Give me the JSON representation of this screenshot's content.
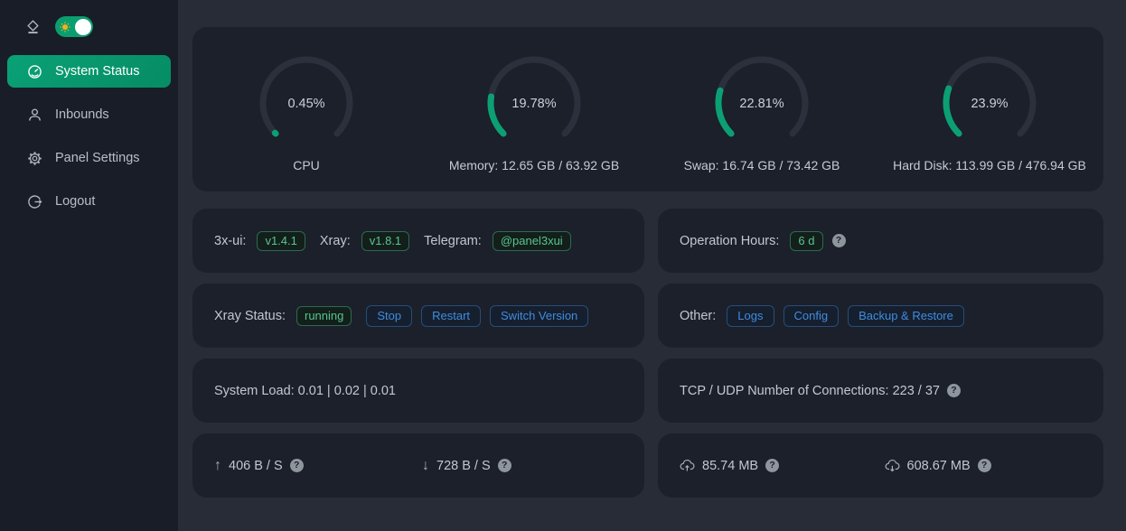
{
  "colors": {
    "accent_green": "#089b6e",
    "gauge_green": "#0c9f74",
    "gauge_track": "#2b303c",
    "tag_green_text": "#57c493",
    "button_blue": "#3f8cdf",
    "sidebar_bg": "#181d28",
    "card_bg": "#1b202b",
    "page_bg": "#272c37"
  },
  "sidebar": {
    "theme_toggle_state": "on",
    "items": [
      {
        "label": "System Status",
        "active": true
      },
      {
        "label": "Inbounds",
        "active": false
      },
      {
        "label": "Panel Settings",
        "active": false
      },
      {
        "label": "Logout",
        "active": false
      }
    ]
  },
  "gauges": [
    {
      "name": "CPU",
      "percent": 0.45,
      "percent_label": "0.45%",
      "label": "CPU"
    },
    {
      "name": "Memory",
      "percent": 19.78,
      "percent_label": "19.78%",
      "label": "Memory: 12.65 GB / 63.92 GB"
    },
    {
      "name": "Swap",
      "percent": 22.81,
      "percent_label": "22.81%",
      "label": "Swap: 16.74 GB / 73.42 GB"
    },
    {
      "name": "Hard Disk",
      "percent": 23.9,
      "percent_label": "23.9%",
      "label": "Hard Disk: 113.99 GB / 476.94 GB"
    }
  ],
  "cards": {
    "versions": {
      "xui_label": "3x-ui:",
      "xui_tag": "v1.4.1",
      "xray_label": "Xray:",
      "xray_tag": "v1.8.1",
      "telegram_label": "Telegram:",
      "telegram_tag": "@panel3xui"
    },
    "operation": {
      "label": "Operation Hours:",
      "tag": "6 d"
    },
    "xray_status": {
      "label": "Xray Status:",
      "tag": "running",
      "buttons": [
        "Stop",
        "Restart",
        "Switch Version"
      ]
    },
    "other": {
      "label": "Other:",
      "buttons": [
        "Logs",
        "Config",
        "Backup & Restore"
      ]
    },
    "system_load": {
      "text": "System Load: 0.01 | 0.02 | 0.01"
    },
    "connections": {
      "text": "TCP / UDP Number of Connections: 223 / 37"
    },
    "speed": {
      "up": "406 B / S",
      "down": "728 B / S"
    },
    "total": {
      "up": "85.74 MB",
      "down": "608.67 MB"
    }
  }
}
